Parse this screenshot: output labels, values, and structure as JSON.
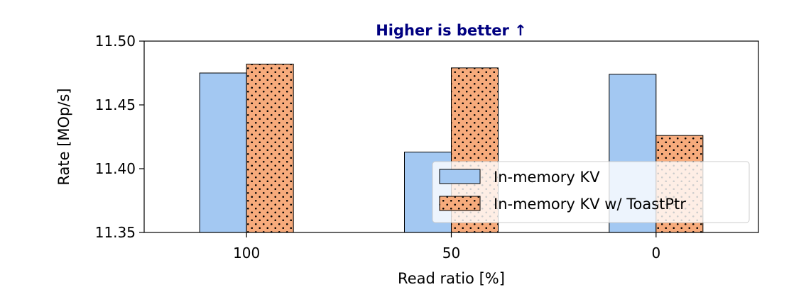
{
  "chart_data": {
    "type": "bar",
    "title": "Higher is better ↑",
    "title_color": "#000080",
    "xlabel": "Read ratio [%]",
    "ylabel": "Rate [MOp/s]",
    "categories": [
      "100",
      "50",
      "0"
    ],
    "ylim": [
      11.35,
      11.5
    ],
    "yticks": [
      "11.35",
      "11.40",
      "11.45",
      "11.50"
    ],
    "series": [
      {
        "name": "In-memory KV",
        "values": [
          11.475,
          11.413,
          11.474
        ],
        "color": "#a3c8f2",
        "hatch": "none"
      },
      {
        "name": "In-memory KV w/ ToastPtr",
        "values": [
          11.482,
          11.479,
          11.426
        ],
        "color": "#f7ab7c",
        "hatch": "dots"
      }
    ],
    "grid": false,
    "legend_position": "lower-right"
  }
}
